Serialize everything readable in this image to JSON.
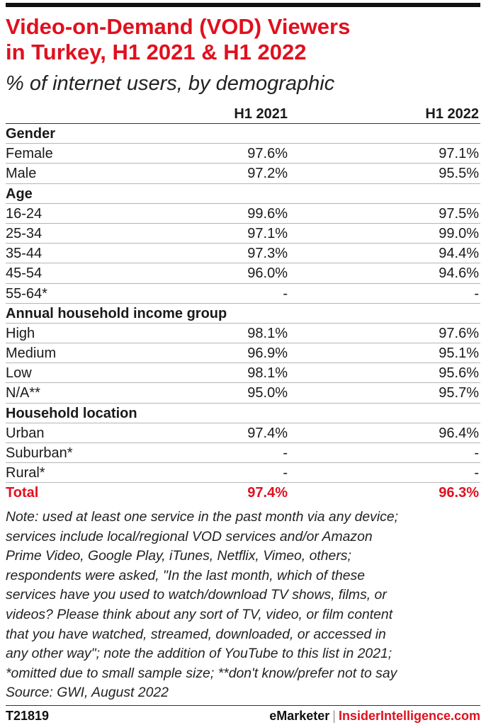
{
  "title_line1": "Video-on-Demand (VOD) Viewers",
  "title_line2": "in Turkey, H1 2021 & H1 2022",
  "subtitle": "% of internet users, by demographic",
  "chart_data": {
    "type": "table",
    "columns": [
      "H1 2021",
      "H1 2022"
    ],
    "rows": [
      {
        "label": "Gender",
        "kind": "section",
        "values": [
          "",
          ""
        ]
      },
      {
        "label": "Female",
        "kind": "data",
        "values": [
          "97.6%",
          "97.1%"
        ]
      },
      {
        "label": "Male",
        "kind": "data",
        "values": [
          "97.2%",
          "95.5%"
        ]
      },
      {
        "label": "Age",
        "kind": "section",
        "values": [
          "",
          ""
        ]
      },
      {
        "label": "16-24",
        "kind": "data",
        "values": [
          "99.6%",
          "97.5%"
        ]
      },
      {
        "label": "25-34",
        "kind": "data",
        "values": [
          "97.1%",
          "99.0%"
        ]
      },
      {
        "label": "35-44",
        "kind": "data",
        "values": [
          "97.3%",
          "94.4%"
        ]
      },
      {
        "label": "45-54",
        "kind": "data",
        "values": [
          "96.0%",
          "94.6%"
        ]
      },
      {
        "label": "55-64*",
        "kind": "data",
        "values": [
          "-",
          "-"
        ]
      },
      {
        "label": "Annual household income group",
        "kind": "section",
        "values": [
          "",
          ""
        ]
      },
      {
        "label": "High",
        "kind": "data",
        "values": [
          "98.1%",
          "97.6%"
        ]
      },
      {
        "label": "Medium",
        "kind": "data",
        "values": [
          "96.9%",
          "95.1%"
        ]
      },
      {
        "label": "Low",
        "kind": "data",
        "values": [
          "98.1%",
          "95.6%"
        ]
      },
      {
        "label": "N/A**",
        "kind": "data",
        "values": [
          "95.0%",
          "95.7%"
        ]
      },
      {
        "label": "Household location",
        "kind": "section",
        "values": [
          "",
          ""
        ]
      },
      {
        "label": "Urban",
        "kind": "data",
        "values": [
          "97.4%",
          "96.4%"
        ]
      },
      {
        "label": "Suburban*",
        "kind": "data",
        "values": [
          "-",
          "-"
        ]
      },
      {
        "label": "Rural*",
        "kind": "data",
        "values": [
          "-",
          "-"
        ]
      },
      {
        "label": "Total",
        "kind": "total",
        "values": [
          "97.4%",
          "96.3%"
        ]
      }
    ]
  },
  "note_lines": [
    "Note: used at least one service in the past month via any device;",
    "services include local/regional VOD services and/or Amazon",
    "Prime Video, Google Play, iTunes, Netflix, Vimeo, others;",
    "respondents were asked, \"In the last month, which of these",
    "services have you used to watch/download TV shows, films, or",
    "videos? Please think about any sort of TV, video, or film content",
    "that you have watched, streamed, downloaded, or accessed in",
    "any other way\"; note the addition of YouTube to this list in 2021;",
    "*omitted due to small sample size; **don't know/prefer not to say",
    "Source: GWI, August 2022"
  ],
  "footer": {
    "chart_id": "T21819",
    "brand": "eMarketer",
    "separator": "|",
    "brand2": "InsiderIntelligence.com"
  },
  "colors": {
    "accent": "#e0101e",
    "text": "#1a1a1a",
    "rule": "#b5b5b5"
  }
}
